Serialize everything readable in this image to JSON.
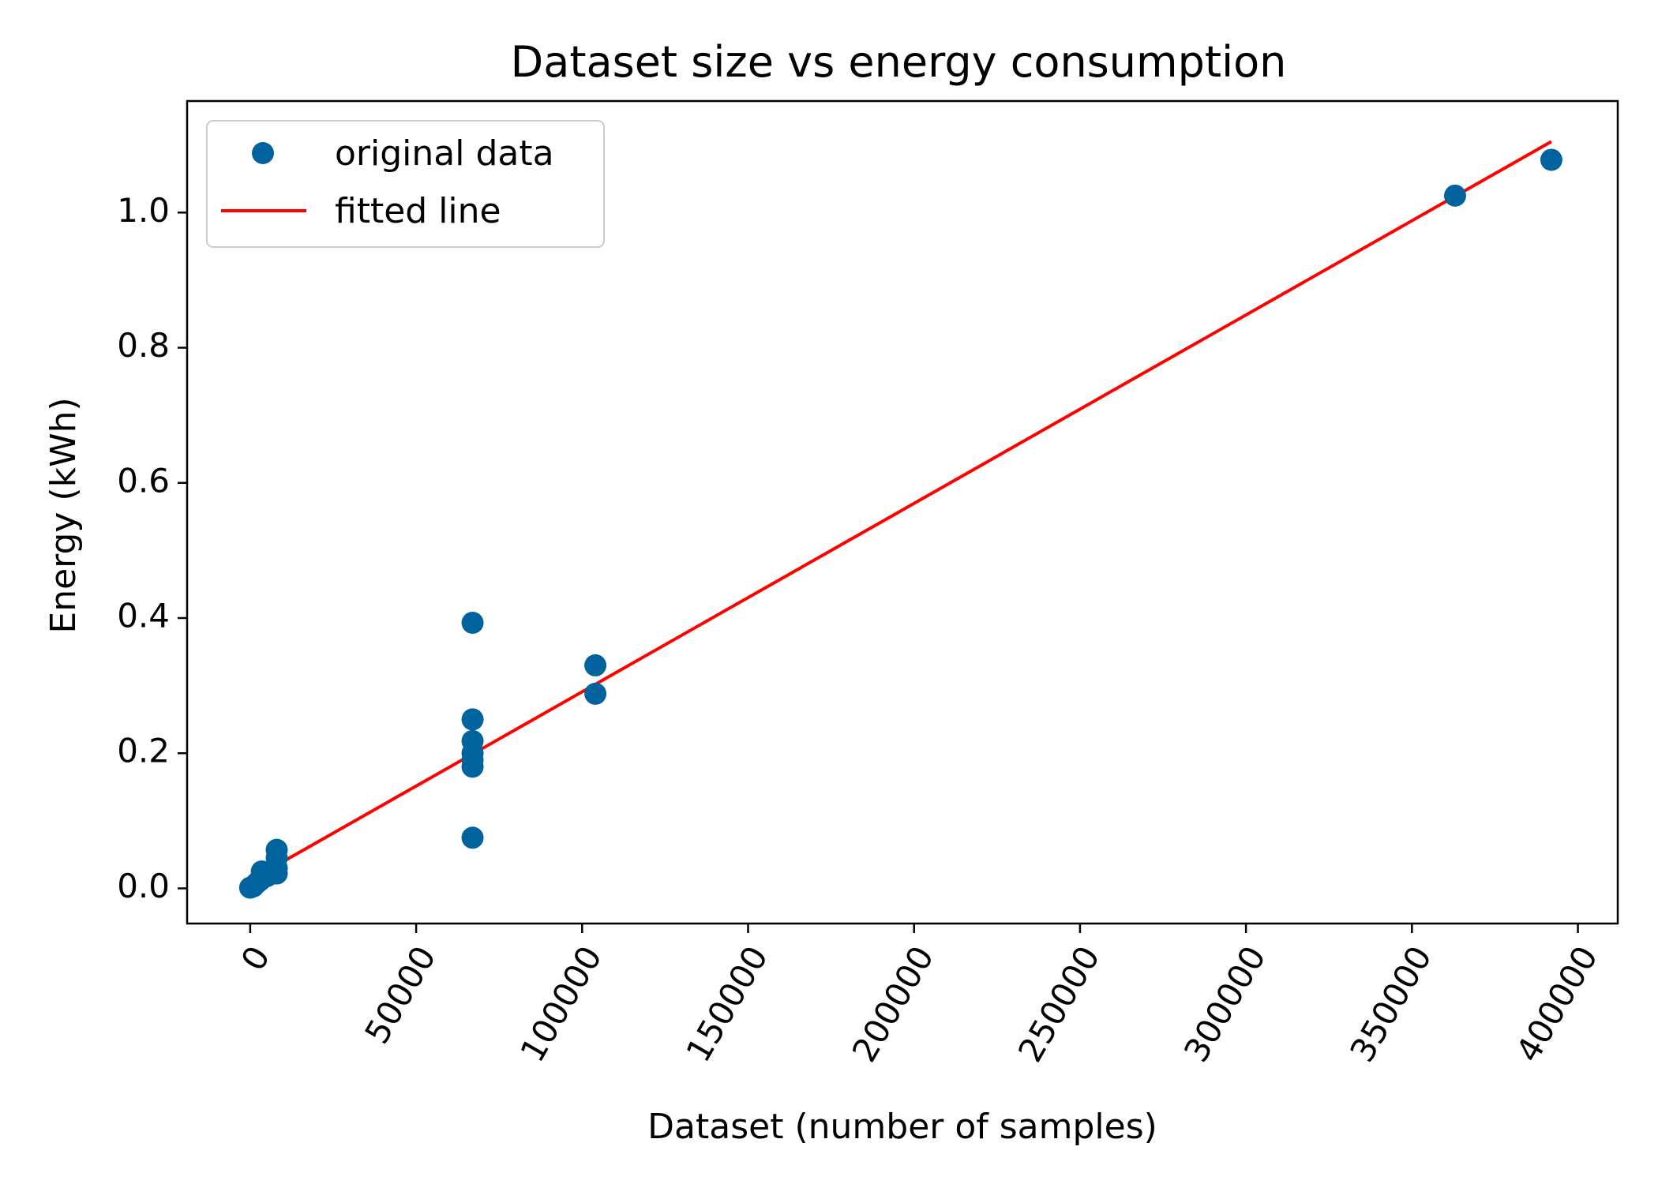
{
  "chart_data": {
    "type": "scatter",
    "title": "Dataset size vs energy consumption",
    "xlabel": "Dataset (number of samples)",
    "ylabel": "Energy (kWh)",
    "xlim": [
      -19000,
      412000
    ],
    "ylim": [
      -0.052,
      1.165
    ],
    "x_ticks": [
      0,
      50000,
      100000,
      150000,
      200000,
      250000,
      300000,
      350000,
      400000
    ],
    "x_tick_labels": [
      "0",
      "50000",
      "100000",
      "150000",
      "200000",
      "250000",
      "300000",
      "350000",
      "400000"
    ],
    "x_tick_rotation_deg": -60,
    "y_ticks": [
      0.0,
      0.2,
      0.4,
      0.6,
      0.8,
      1.0
    ],
    "y_tick_labels": [
      "0.0",
      "0.2",
      "0.4",
      "0.6",
      "0.8",
      "1.0"
    ],
    "grid": false,
    "legend_position": "top-left",
    "series": [
      {
        "name": "original data",
        "kind": "markers",
        "color": "#00639e",
        "x": [
          0,
          1000,
          2000,
          3000,
          3500,
          5000,
          8000,
          8000,
          8000,
          8000,
          67000,
          67000,
          67000,
          67000,
          67000,
          67000,
          67000,
          104000,
          104000,
          363000,
          392000
        ],
        "y": [
          0.001,
          0.003,
          0.008,
          0.012,
          0.025,
          0.018,
          0.022,
          0.03,
          0.045,
          0.057,
          0.393,
          0.25,
          0.218,
          0.2,
          0.19,
          0.18,
          0.075,
          0.33,
          0.288,
          1.025,
          1.078
        ]
      },
      {
        "name": "fitted line",
        "kind": "line",
        "color": "#ff0000",
        "x": [
          0,
          392000
        ],
        "y": [
          0.012,
          1.105
        ]
      }
    ]
  }
}
